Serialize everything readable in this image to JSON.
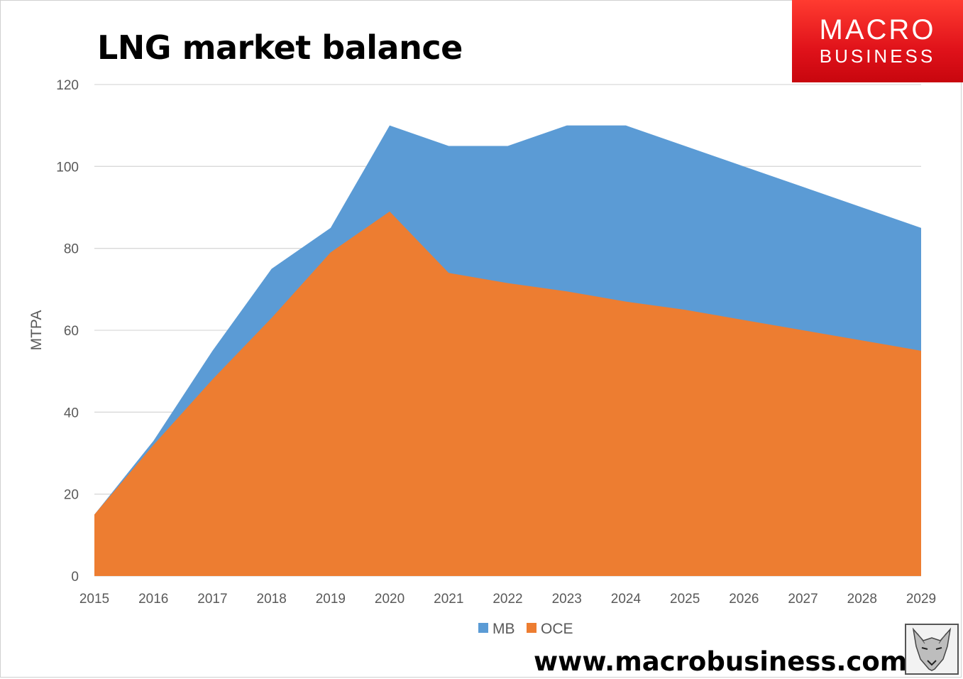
{
  "header": {
    "title": "LNG market balance"
  },
  "logo": {
    "line1": "MACRO",
    "line2": "BUSINESS"
  },
  "footer": {
    "url": "www.macrobusiness.com.au",
    "mascot_icon": "wolf-icon"
  },
  "colors": {
    "mb": "#5b9bd5",
    "oce": "#ed7d31",
    "grid": "#d9d9d9",
    "brand_red": "#e0121a"
  },
  "chart_data": {
    "type": "area",
    "title": "LNG market balance",
    "xlabel": "",
    "ylabel": "MTPA",
    "x": [
      "2015",
      "2016",
      "2017",
      "2018",
      "2019",
      "2020",
      "2021",
      "2022",
      "2023",
      "2024",
      "2025",
      "2026",
      "2027",
      "2028",
      "2029"
    ],
    "ylim": [
      0,
      120
    ],
    "yticks": [
      0,
      20,
      40,
      60,
      80,
      100,
      120
    ],
    "grid": true,
    "legend_position": "bottom",
    "series": [
      {
        "name": "MB",
        "color": "#5b9bd5",
        "values": [
          15,
          33,
          55,
          75,
          85,
          110,
          105,
          105,
          110,
          110,
          105,
          100,
          95,
          90,
          85
        ]
      },
      {
        "name": "OCE",
        "color": "#ed7d31",
        "values": [
          15,
          32,
          48,
          63,
          79,
          89,
          74,
          71.5,
          69.5,
          67,
          65,
          62.5,
          60,
          57.5,
          55
        ]
      }
    ]
  }
}
